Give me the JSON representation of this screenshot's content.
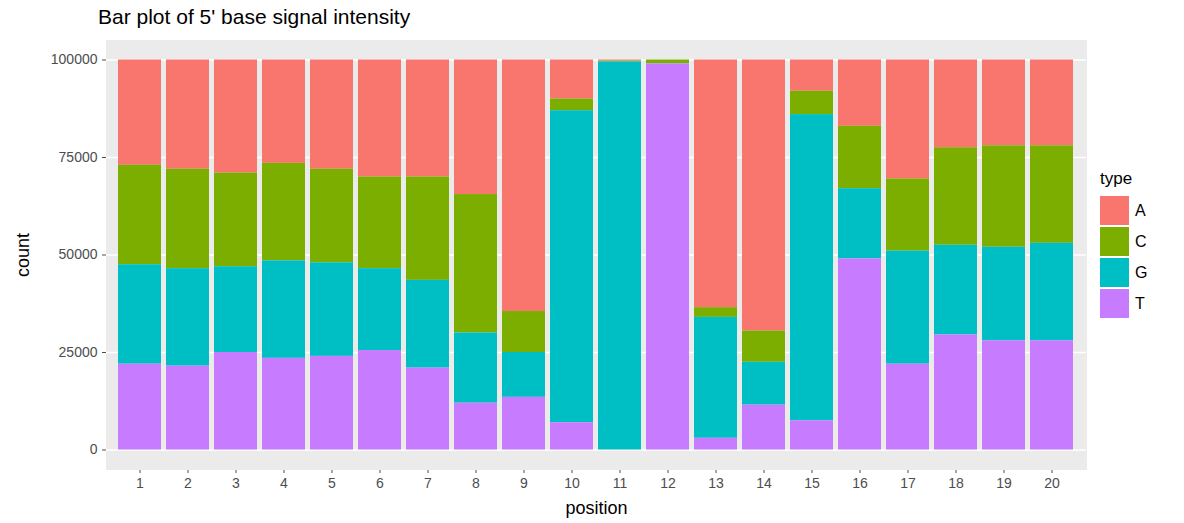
{
  "chart_data": {
    "type": "bar",
    "title": "Bar plot of 5' base signal intensity",
    "x_label": "position",
    "y_label": "count",
    "legend_title": "type",
    "legend": "right",
    "stacked": true,
    "grid": true,
    "categories": [
      "1",
      "2",
      "3",
      "4",
      "5",
      "6",
      "7",
      "8",
      "9",
      "10",
      "11",
      "12",
      "13",
      "14",
      "15",
      "16",
      "17",
      "18",
      "19",
      "20"
    ],
    "series": [
      {
        "name": "A",
        "color": "#F8766D",
        "values": [
          27000,
          28000,
          29000,
          26500,
          28000,
          30000,
          30000,
          34500,
          64500,
          10000,
          300,
          0,
          63500,
          69500,
          8000,
          17000,
          30500,
          22500,
          22000,
          22000
        ]
      },
      {
        "name": "C",
        "color": "#7CAE00",
        "values": [
          25500,
          25500,
          24000,
          25000,
          24000,
          23500,
          26500,
          35500,
          10500,
          3000,
          200,
          1000,
          2500,
          8000,
          6000,
          16000,
          18500,
          25000,
          26000,
          25000
        ]
      },
      {
        "name": "G",
        "color": "#00BFC4",
        "values": [
          25500,
          25000,
          22000,
          25000,
          24000,
          21000,
          22500,
          18000,
          11500,
          80000,
          99500,
          0,
          31000,
          11000,
          78500,
          18000,
          29000,
          23000,
          24000,
          25000
        ]
      },
      {
        "name": "T",
        "color": "#C77CFF",
        "values": [
          22000,
          21500,
          25000,
          23500,
          24000,
          25500,
          21000,
          12000,
          13500,
          7000,
          0,
          99000,
          3000,
          11500,
          7500,
          49000,
          22000,
          29500,
          28000,
          28000
        ]
      }
    ],
    "ylim": [
      -5000,
      105000
    ],
    "yticks": [
      0,
      25000,
      50000,
      75000,
      100000
    ]
  }
}
